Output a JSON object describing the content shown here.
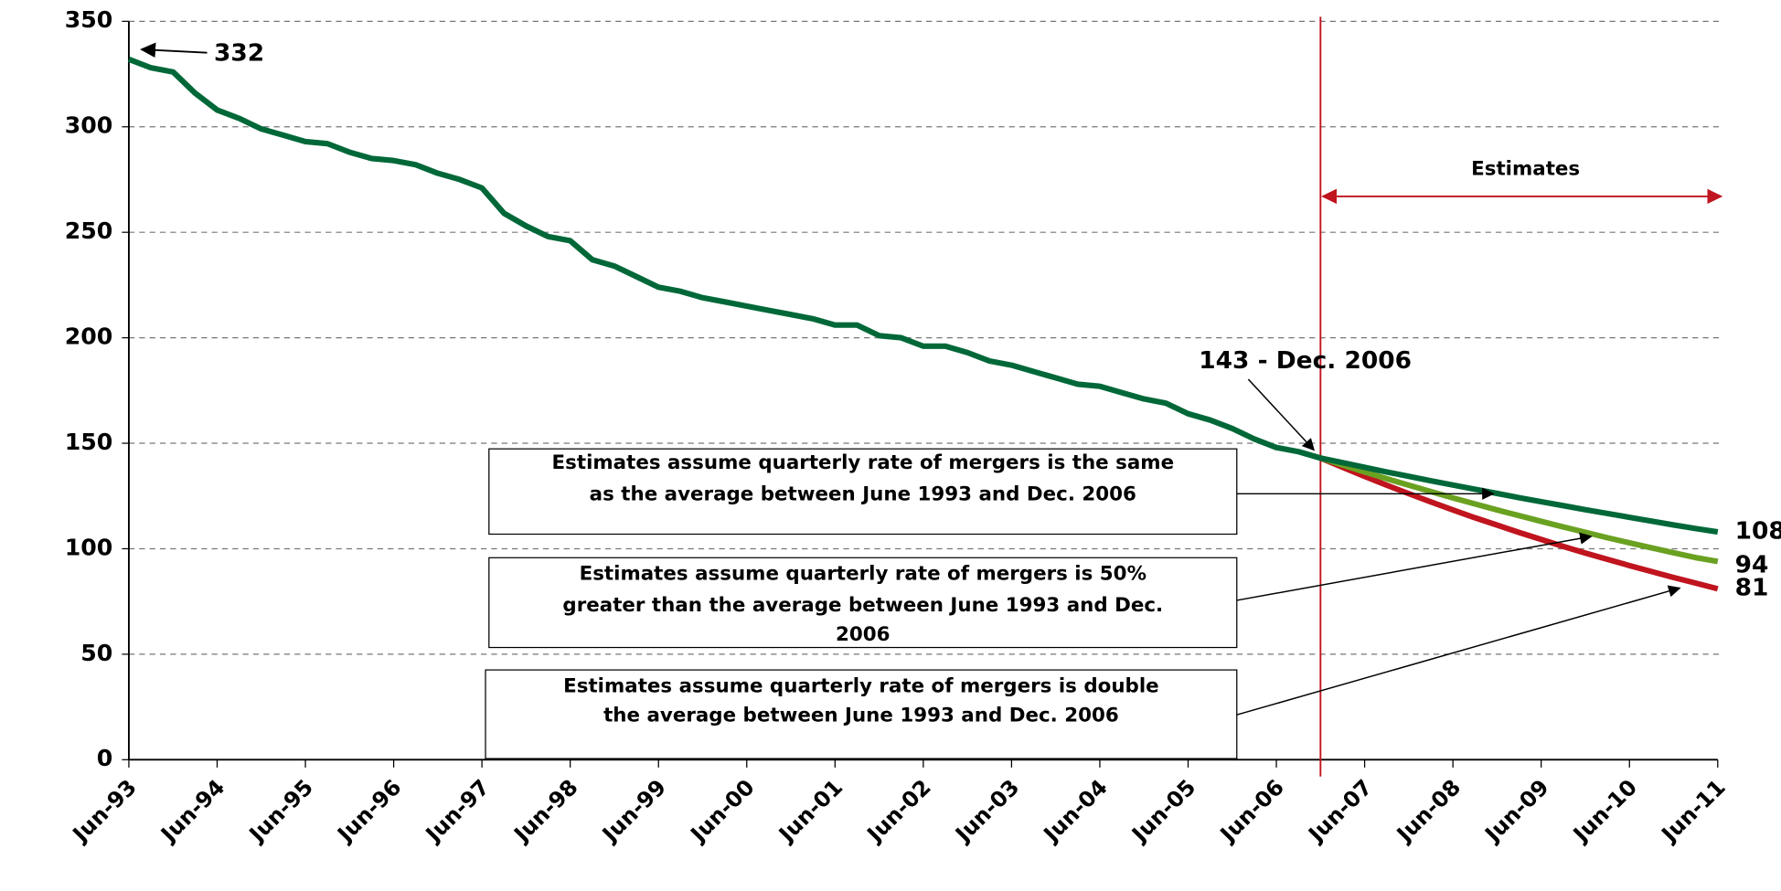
{
  "chart_data": {
    "type": "line",
    "categories": [
      "Jun-93",
      null,
      null,
      null,
      "Jun-94",
      null,
      null,
      null,
      "Jun-95",
      null,
      null,
      null,
      "Jun-96",
      null,
      null,
      null,
      "Jun-97",
      null,
      null,
      null,
      "Jun-98",
      null,
      null,
      null,
      "Jun-99",
      null,
      null,
      null,
      "Jun-00",
      null,
      null,
      null,
      "Jun-01",
      null,
      null,
      null,
      "Jun-02",
      null,
      null,
      null,
      "Jun-03",
      null,
      null,
      null,
      "Jun-04",
      null,
      null,
      null,
      "Jun-05",
      null,
      null,
      null,
      "Jun-06",
      null,
      null,
      null,
      "Jun-07",
      null,
      null,
      null,
      "Jun-08",
      null,
      null,
      null,
      "Jun-09",
      null,
      null,
      null,
      "Jun-10",
      null,
      null,
      null,
      "Jun-11"
    ],
    "series": [
      {
        "color": "#006838",
        "values": [
          332,
          328,
          326,
          316,
          308,
          304,
          299,
          296,
          293,
          292,
          288,
          285,
          284,
          282,
          278,
          275,
          271,
          259,
          253,
          248,
          246,
          237,
          234,
          229,
          224,
          222,
          219,
          217,
          215,
          213,
          211,
          209,
          206,
          206,
          201,
          200,
          196,
          196,
          193,
          189,
          187,
          184,
          181,
          178,
          177,
          174,
          171,
          169,
          164,
          161,
          157,
          152,
          148,
          146,
          143,
          140.8,
          138.6,
          136.4,
          134.3,
          132.2,
          130.2,
          128.2,
          126.2,
          124.2,
          122.3,
          120.4,
          118.5,
          116.7,
          114.9,
          113.1,
          111.3,
          109.6,
          108
        ]
      },
      {
        "color": "#6aa121",
        "values": [
          null,
          null,
          null,
          null,
          null,
          null,
          null,
          null,
          null,
          null,
          null,
          null,
          null,
          null,
          null,
          null,
          null,
          null,
          null,
          null,
          null,
          null,
          null,
          null,
          null,
          null,
          null,
          null,
          null,
          null,
          null,
          null,
          null,
          null,
          null,
          null,
          null,
          null,
          null,
          null,
          null,
          null,
          null,
          null,
          null,
          null,
          null,
          null,
          null,
          null,
          null,
          null,
          null,
          null,
          143,
          139.7,
          136.4,
          133.2,
          130.1,
          127.1,
          124.1,
          121.2,
          118.4,
          115.7,
          113,
          110.3,
          107.8,
          105.2,
          102.8,
          100.4,
          98.1,
          95.8,
          94
        ]
      },
      {
        "color": "#c0141e",
        "values": [
          null,
          null,
          null,
          null,
          null,
          null,
          null,
          null,
          null,
          null,
          null,
          null,
          null,
          null,
          null,
          null,
          null,
          null,
          null,
          null,
          null,
          null,
          null,
          null,
          null,
          null,
          null,
          null,
          null,
          null,
          null,
          null,
          null,
          null,
          null,
          null,
          null,
          null,
          null,
          null,
          null,
          null,
          null,
          null,
          null,
          null,
          null,
          null,
          null,
          null,
          null,
          null,
          null,
          null,
          143,
          138.6,
          134.3,
          130.1,
          126.1,
          122.2,
          118.4,
          114.7,
          111.2,
          107.7,
          104.4,
          101.1,
          98,
          95,
          92,
          89.2,
          86.4,
          83.7,
          81
        ]
      }
    ],
    "ylim": [
      0,
      350
    ],
    "yticks": [
      0,
      50,
      100,
      150,
      200,
      250,
      300,
      350
    ],
    "grid": true,
    "annotations": {
      "start": "332",
      "current": "143 - Dec. 2006",
      "estimates": "Estimates",
      "box1": [
        "Estimates assume quarterly rate of mergers is the same",
        "as the average between June 1993 and Dec. 2006"
      ],
      "box2": [
        "Estimates assume quarterly rate of mergers is 50%",
        "greater than the average between June 1993 and Dec.",
        "2006"
      ],
      "box3": [
        "Estimates assume quarterly rate of mergers is double",
        "the average between June 1993 and Dec. 2006"
      ]
    }
  }
}
